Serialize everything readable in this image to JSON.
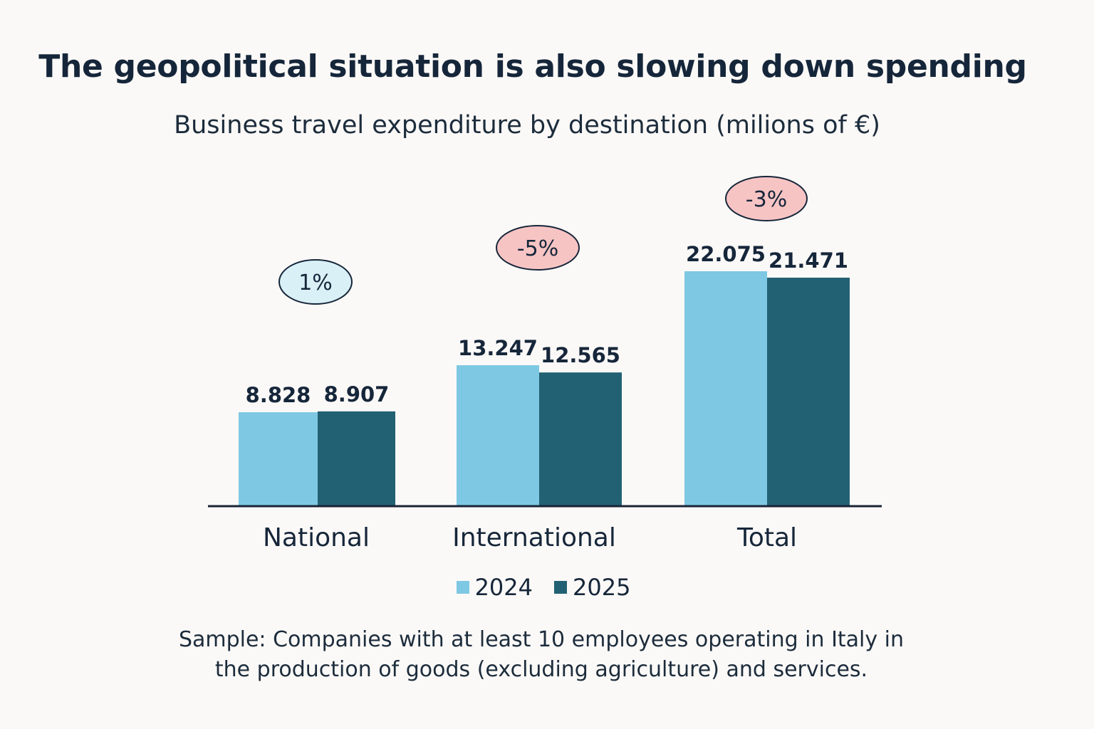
{
  "title": "The geopolitical situation is also slowing down spending",
  "subtitle": "Business travel expenditure by destination (milions of €)",
  "chart_data": {
    "type": "bar",
    "categories": [
      "National",
      "International",
      "Total"
    ],
    "series": [
      {
        "name": "2024",
        "values": [
          8828,
          13247,
          22075
        ],
        "labels": [
          "8.828",
          "13.247",
          "22.075"
        ],
        "color": "#7ec8e3"
      },
      {
        "name": "2025",
        "values": [
          8907,
          12565,
          21471
        ],
        "labels": [
          "8.907",
          "12.565",
          "21.471"
        ],
        "color": "#226173"
      }
    ],
    "changes": [
      {
        "label": "1%",
        "tone": "positive"
      },
      {
        "label": "-5%",
        "tone": "negative"
      },
      {
        "label": "-3%",
        "tone": "negative"
      }
    ],
    "colors": {
      "positive_fill": "#d9f0f6",
      "negative_fill": "#f7c4c4",
      "axis": "#1a2436"
    },
    "ylim": [
      0,
      25000
    ],
    "legend_position": "bottom"
  },
  "legend": {
    "items": [
      {
        "label": "2024",
        "color": "#7ec8e3"
      },
      {
        "label": "2025",
        "color": "#226173"
      }
    ]
  },
  "note": {
    "line1": "Sample: Companies with at least 10 employees operating in Italy in",
    "line2": "the production of goods (excluding agriculture) and services."
  }
}
